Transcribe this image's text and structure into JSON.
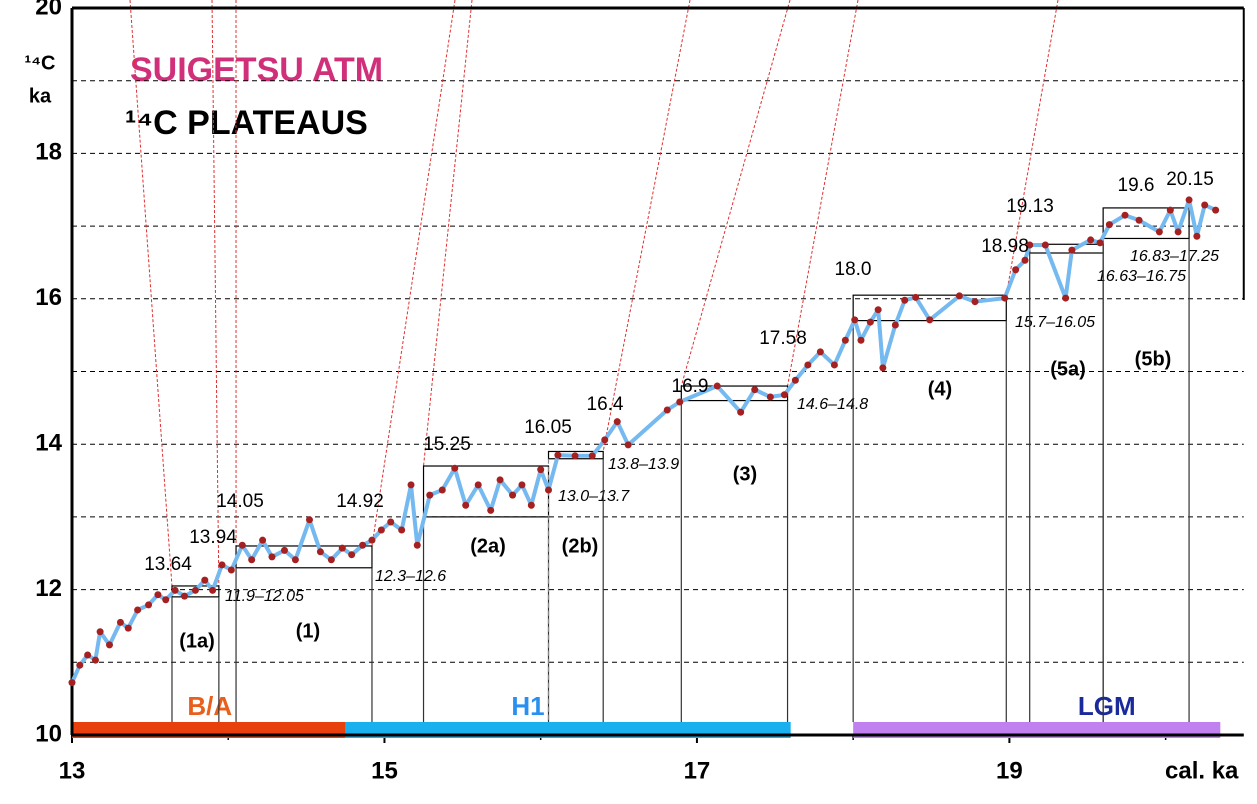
{
  "chart_data": {
    "type": "line",
    "title": "SUIGETSU  ATM",
    "title_color": "#d0307a",
    "subtitle": "¹⁴C PLATEAUS",
    "y_label": [
      "¹⁴C",
      "ka"
    ],
    "x_label": "cal. ka",
    "xlim": [
      13,
      20.5
    ],
    "ylim": [
      10,
      20
    ],
    "xticks": [
      13,
      15,
      17,
      19
    ],
    "minor_xticks": [
      14,
      16,
      18,
      20
    ],
    "yticks": [
      10,
      12,
      14,
      16,
      18,
      20
    ],
    "minor_yticks": [
      11,
      13,
      15,
      17,
      19
    ],
    "grid": true,
    "color": "#74b9f0",
    "marker_color": "#a52020",
    "x": [
      13.0,
      13.05,
      13.1,
      13.15,
      13.18,
      13.24,
      13.31,
      13.36,
      13.42,
      13.49,
      13.55,
      13.6,
      13.66,
      13.72,
      13.79,
      13.85,
      13.9,
      13.96,
      14.02,
      14.09,
      14.15,
      14.22,
      14.28,
      14.36,
      14.43,
      14.52,
      14.59,
      14.66,
      14.73,
      14.79,
      14.86,
      14.92,
      14.98,
      15.04,
      15.11,
      15.17,
      15.21,
      15.29,
      15.37,
      15.45,
      15.52,
      15.6,
      15.68,
      15.74,
      15.82,
      15.88,
      15.94,
      16.0,
      16.05,
      16.11,
      16.22,
      16.33,
      16.41,
      16.49,
      16.56,
      16.81,
      16.89,
      17.13,
      17.28,
      17.37,
      17.47,
      17.56,
      17.63,
      17.71,
      17.79,
      17.88,
      17.95,
      18.01,
      18.05,
      18.11,
      18.16,
      18.19,
      18.27,
      18.33,
      18.4,
      18.49,
      18.68,
      18.78,
      18.97,
      19.04,
      19.1,
      19.13,
      19.23,
      19.36,
      19.4,
      19.52,
      19.58,
      19.64,
      19.74,
      19.83,
      19.96,
      20.03,
      20.08,
      20.15,
      20.2,
      20.25,
      20.32
    ],
    "values": [
      10.72,
      10.96,
      11.1,
      11.03,
      11.42,
      11.24,
      11.55,
      11.47,
      11.72,
      11.79,
      11.93,
      11.86,
      11.99,
      11.91,
      11.99,
      12.13,
      11.99,
      12.34,
      12.27,
      12.61,
      12.41,
      12.68,
      12.45,
      12.54,
      12.41,
      12.96,
      12.52,
      12.41,
      12.57,
      12.48,
      12.61,
      12.68,
      12.82,
      12.93,
      12.82,
      13.44,
      12.61,
      13.3,
      13.37,
      13.67,
      13.16,
      13.44,
      13.09,
      13.51,
      13.3,
      13.44,
      13.16,
      13.65,
      13.37,
      13.85,
      13.84,
      13.84,
      14.06,
      14.31,
      13.99,
      14.47,
      14.58,
      14.8,
      14.44,
      14.75,
      14.65,
      14.68,
      14.88,
      15.09,
      15.27,
      15.09,
      15.43,
      15.71,
      15.43,
      15.68,
      15.85,
      15.05,
      15.64,
      15.98,
      16.02,
      15.71,
      16.04,
      15.96,
      16.01,
      16.4,
      16.53,
      16.74,
      16.74,
      16.01,
      16.67,
      16.81,
      16.77,
      17.02,
      17.15,
      17.08,
      16.92,
      17.22,
      16.92,
      17.36,
      16.86,
      17.29,
      17.22
    ],
    "plateaus": [
      {
        "name": "(1a)",
        "x": [
          13.64,
          13.94
        ],
        "y": [
          11.9,
          12.05
        ],
        "range_label": "11.9–12.05"
      },
      {
        "name": "(1)",
        "x": [
          14.05,
          14.92
        ],
        "y": [
          12.3,
          12.6
        ],
        "range_label": "12.3–12.6"
      },
      {
        "name": "(2a)",
        "x": [
          15.25,
          16.05
        ],
        "y": [
          13.0,
          13.7
        ],
        "range_label": "13.0–13.7"
      },
      {
        "name": "(2b)",
        "x": [
          16.05,
          16.4
        ],
        "y": [
          13.8,
          13.9
        ],
        "range_label": "13.8–13.9"
      },
      {
        "name": "(3)",
        "x": [
          16.9,
          17.58
        ],
        "y": [
          14.6,
          14.8
        ],
        "range_label": "14.6–14.8"
      },
      {
        "name": "(4)",
        "x": [
          18.0,
          18.98
        ],
        "y": [
          15.7,
          16.05
        ],
        "range_label": "15.7–16.05"
      },
      {
        "name": "(5a)",
        "x": [
          19.13,
          19.6
        ],
        "y": [
          16.63,
          16.75
        ],
        "range_label": "16.63–16.75"
      },
      {
        "name": "(5b)",
        "x": [
          19.6,
          20.15
        ],
        "y": [
          16.83,
          17.25
        ],
        "range_label": "16.83–17.25"
      }
    ],
    "edges": [
      {
        "value": 13.64,
        "label": "13.64"
      },
      {
        "value": 13.94,
        "label": "13.94"
      },
      {
        "value": 14.05,
        "label": "14.05"
      },
      {
        "value": 14.92,
        "label": "14.92"
      },
      {
        "value": 15.25,
        "label": "15.25"
      },
      {
        "value": 16.05,
        "label": "16.05"
      },
      {
        "value": 16.4,
        "label": "16.4"
      },
      {
        "value": 16.9,
        "label": "16.9"
      },
      {
        "value": 17.58,
        "label": "17.58"
      },
      {
        "value": 18.0,
        "label": "18.0"
      },
      {
        "value": 18.98,
        "label": "18.98"
      },
      {
        "value": 19.13,
        "label": "19.13"
      },
      {
        "value": 19.6,
        "label": "19.6"
      },
      {
        "value": 20.15,
        "label": "20.15"
      }
    ],
    "periods": [
      {
        "label": "B/A",
        "x": [
          13,
          14.75
        ],
        "color": "#e8400c",
        "text_color": "#e8601c"
      },
      {
        "label": "H1",
        "x": [
          14.75,
          17.6
        ],
        "color": "#1ab0f0",
        "text_color": "#2a90f0"
      },
      {
        "label": "LGM",
        "x": [
          18,
          20.35
        ],
        "color": "#c080f0",
        "text_color": "#1a2a9a"
      }
    ]
  }
}
